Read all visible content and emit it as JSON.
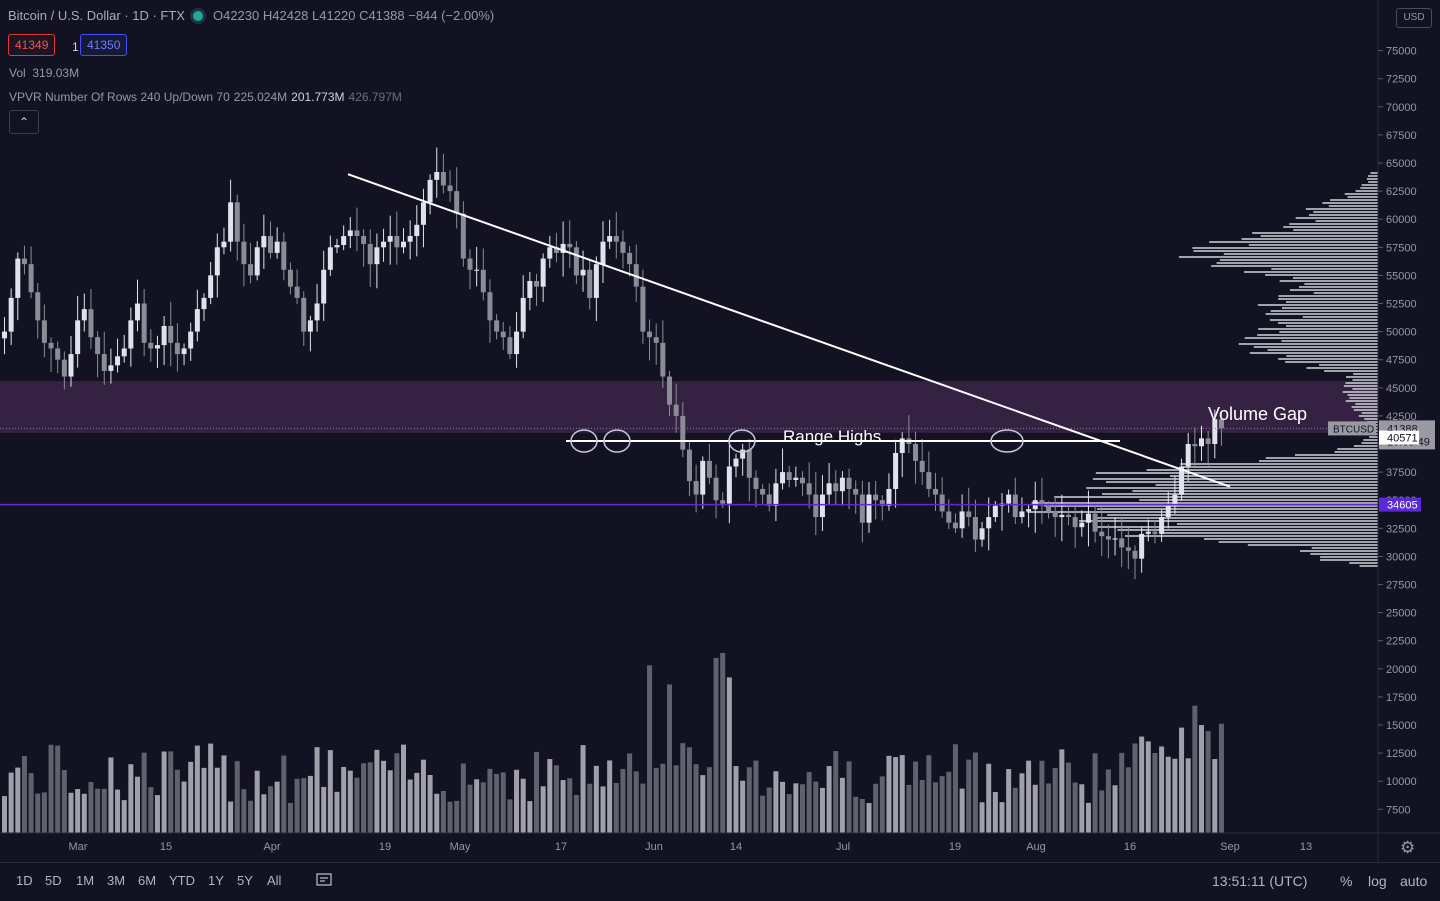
{
  "header": {
    "title": "Bitcoin / U.S. Dollar · 1D · FTX",
    "ohlc": {
      "o": "O42230",
      "h": "H42428",
      "l": "L41220",
      "c": "C41388",
      "chg": "−844 (−2.00%)"
    },
    "bid": "41349",
    "spread": "1",
    "ask": "41350",
    "volume_label": "Vol",
    "volume_value": "319.03M",
    "vpvr_label": "VPVR Number Of Rows 240 Up/Down 70",
    "vpvr_v1": "225.024M",
    "vpvr_v2": "201.773M",
    "vpvr_v3": "426.797M",
    "collapse_icon": "chevron-up-icon",
    "currency": "USD"
  },
  "colors": {
    "background": "#131223",
    "zone": "#3a2345",
    "support_line": "#5b2ad6",
    "trend": "#ffffff",
    "candle": "#e0e3eb",
    "candle_down": "#8a8d96"
  },
  "chart_data": {
    "type": "candlestick",
    "symbol": "BTCUSD",
    "timeframe": "1D",
    "ylim": [
      5000,
      77500
    ],
    "y_ticks": [
      7500,
      10000,
      12500,
      15000,
      17500,
      20000,
      22500,
      25000,
      27500,
      30000,
      32500,
      35000,
      37500,
      40000,
      42500,
      45000,
      47500,
      50000,
      52500,
      55000,
      57500,
      60000,
      62500,
      65000,
      67500,
      70000,
      72500,
      75000
    ],
    "x_ticks": [
      "Mar",
      "15",
      "Apr",
      "19",
      "May",
      "17",
      "Jun",
      "14",
      "Jul",
      "19",
      "Aug",
      "16",
      "Sep",
      "13"
    ],
    "closes": [
      50000,
      53000,
      56500,
      56000,
      53500,
      51000,
      49000,
      48500,
      47500,
      46000,
      48000,
      51000,
      52000,
      49500,
      48000,
      46500,
      47000,
      47800,
      48500,
      51000,
      52500,
      49000,
      48500,
      48800,
      50500,
      49000,
      48000,
      48500,
      50000,
      52000,
      53000,
      55000,
      57500,
      58000,
      61500,
      58000,
      56000,
      55000,
      57500,
      58500,
      57000,
      58000,
      55500,
      54000,
      53000,
      50000,
      51000,
      52500,
      55500,
      57500,
      57700,
      58500,
      59000,
      58500,
      57800,
      56000,
      57500,
      58000,
      58500,
      57500,
      58000,
      58500,
      59500,
      61500,
      63500,
      64200,
      63000,
      62500,
      60500,
      56500,
      55500,
      55500,
      53500,
      51000,
      50000,
      49500,
      48000,
      50000,
      53000,
      54500,
      54000,
      56500,
      57500,
      57000,
      57800,
      57500,
      55000,
      55500,
      53000,
      56000,
      58000,
      58500,
      58000,
      57000,
      56000,
      54000,
      50000,
      49500,
      49000,
      46000,
      43500,
      42500,
      39500,
      36700,
      35500,
      38500,
      37000,
      35000,
      34700,
      38000,
      38700,
      39500,
      37000,
      36000,
      35500,
      34500,
      36500,
      37500,
      36800,
      37000,
      36500,
      35500,
      33500,
      35500,
      36500,
      35800,
      37000,
      36000,
      35500,
      33000,
      35500,
      35000,
      34500,
      36000,
      39200,
      40500,
      40000,
      38500,
      37500,
      36000,
      35500,
      34000,
      33000,
      32500,
      34000,
      33500,
      31500,
      32500,
      33500,
      34500,
      34700,
      35500,
      33500,
      34000,
      34200,
      35000,
      34500,
      34000,
      33500,
      33700,
      33500,
      32600,
      33000,
      33800,
      32200,
      31800,
      31500,
      31600,
      30800,
      30500,
      29800,
      32000,
      32200,
      32000,
      33500,
      34500,
      35500,
      38000,
      40000,
      39800,
      40500,
      40000,
      42200,
      41388
    ],
    "zone_range": [
      41000,
      45600
    ],
    "support_level": 34605,
    "range_highs_level": 40000,
    "trendline": {
      "from": [
        "Apr 14",
        64000
      ],
      "to": [
        "Sep 1",
        36200
      ]
    },
    "price_labels": {
      "last": "41388",
      "countdown": "10:08:49",
      "symbol_tag": "BTCUSD",
      "level_1": "40571",
      "level_2": "34605"
    },
    "annotations": {
      "range_highs": "Range Highs",
      "volume_gap": "Volume Gap"
    }
  },
  "bottom_bar": {
    "timeframes": [
      "1D",
      "5D",
      "1M",
      "3M",
      "6M",
      "YTD",
      "1Y",
      "5Y",
      "All"
    ],
    "compare_icon": "compare-icon",
    "time": "13:51:11 (UTC)",
    "percent": "%",
    "log": "log",
    "auto": "auto",
    "settings_icon": "gear-icon"
  }
}
